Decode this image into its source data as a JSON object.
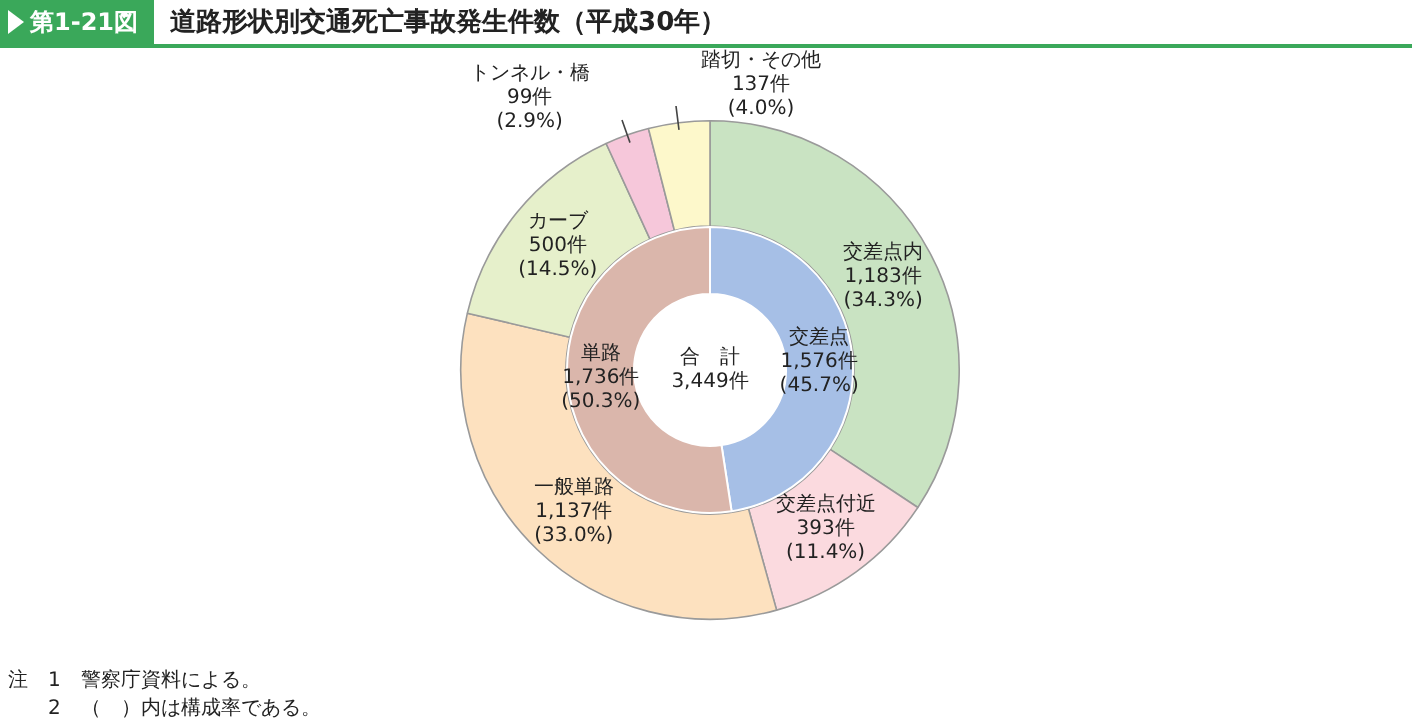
{
  "chart_data": [
    {
      "type": "donut",
      "title": "道路形状別交通死亡事故発生件数（平成30年）",
      "subtitle": "第1-21図",
      "categories": [
        "交差点内",
        "交差点付近",
        "一般単路",
        "カーブ",
        "トンネル・橋",
        "踏切・その他"
      ],
      "values": [
        1183,
        393,
        1137,
        500,
        99,
        137
      ],
      "colors": [
        "#c9e3c2",
        "#fbdadf",
        "#fde1bf",
        "#e6f0cb",
        "#f6c7da",
        "#fdf8cb"
      ],
      "value_labels": [
        "1,183件\n(34.3%)",
        "393件\n(11.4%)",
        "1,137件\n(33.0%)",
        "500件\n(14.5%)",
        "99件\n(2.9%)",
        "137件\n(4.0%)"
      ],
      "annotations": [
        "注　1　警察庁資料による。",
        "　　2　（　）内は構成率である。"
      ]
    },
    {
      "type": "donut",
      "categories": [
        "交差点",
        "単路"
      ],
      "values": [
        1576,
        1736
      ],
      "colors": [
        "#a6bfe6",
        "#dab6ab"
      ],
      "value_labels": [
        "1,576件\n(45.7%)",
        "1,736件\n(50.3%)"
      ],
      "annotations": [
        "合　計\n3,449件"
      ]
    }
  ]
}
